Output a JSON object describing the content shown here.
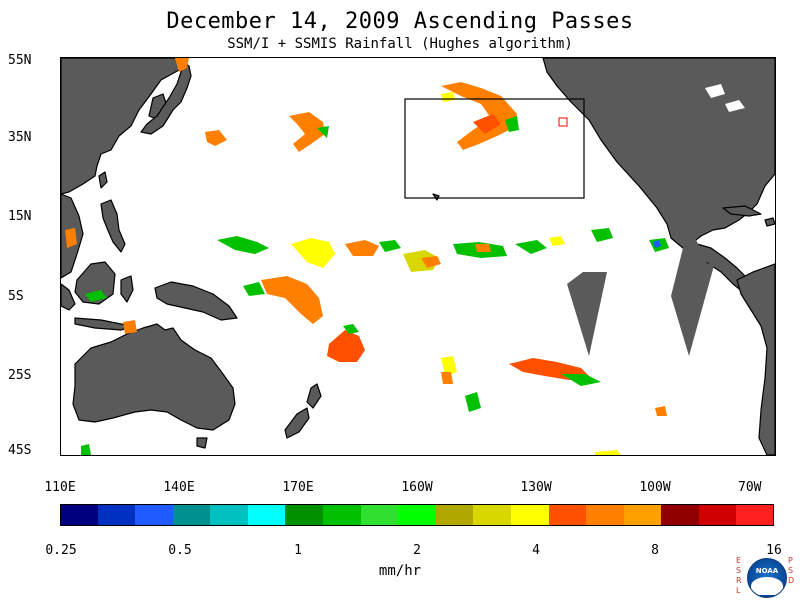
{
  "title": "December 14, 2009  Ascending Passes",
  "subtitle": "SSM/I + SSMIS Rainfall (Hughes algorithm)",
  "axes": {
    "lat_labels": [
      "55N",
      "35N",
      "15N",
      "5S",
      "25S",
      "45S"
    ],
    "lon_labels": [
      "110E",
      "140E",
      "170E",
      "160W",
      "130W",
      "100W",
      "70W"
    ]
  },
  "colorbar": {
    "colors": [
      "#00007f",
      "#0030c0",
      "#1f5bff",
      "#009090",
      "#00c0c0",
      "#00ffff",
      "#009000",
      "#00c000",
      "#30e030",
      "#00ff00",
      "#b0a800",
      "#d8d800",
      "#ffff00",
      "#ff5000",
      "#ff8000",
      "#ffa000",
      "#900000",
      "#d00000",
      "#ff2020"
    ],
    "tick_labels": [
      "0.25",
      "0.5",
      "1",
      "2",
      "4",
      "8",
      "16"
    ],
    "units": "mm/hr"
  },
  "colors": {
    "land": "#5a5a5a",
    "missing_swath": "#5a5a5a",
    "box_outline": "#000000",
    "marker": "#ff0000"
  },
  "logo": {
    "left_letters": [
      "E",
      "S",
      "R",
      "L"
    ],
    "right_letters": [
      "P",
      "S",
      "D"
    ],
    "text": "NOAA"
  }
}
